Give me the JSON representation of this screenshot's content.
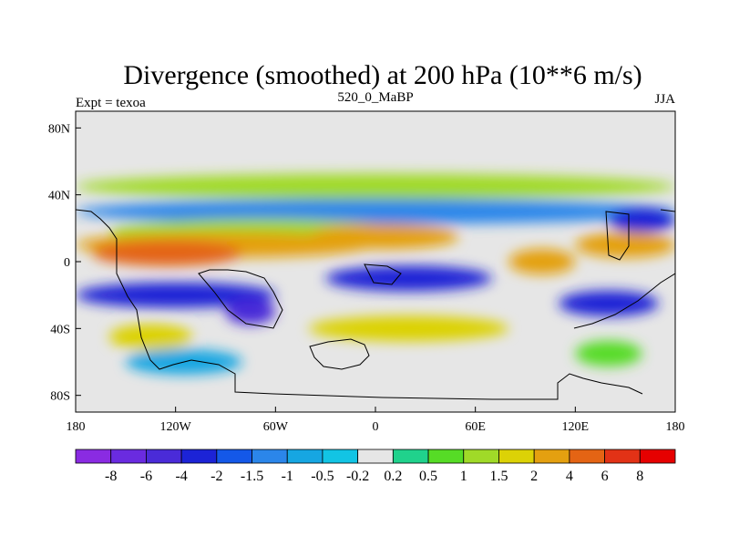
{
  "chart_data": {
    "type": "heatmap",
    "title": "Divergence (smoothed) at 200 hPa (10**6 m/s)",
    "left_label": "Expt = texoa",
    "center_label": "520_0_MaBP",
    "right_label": "JJA",
    "x_range": [
      -180,
      180
    ],
    "y_range": [
      -90,
      90
    ],
    "x_ticks": [
      {
        "value": -180,
        "label": "180"
      },
      {
        "value": -120,
        "label": "120W"
      },
      {
        "value": -60,
        "label": "60W"
      },
      {
        "value": 0,
        "label": "0"
      },
      {
        "value": 60,
        "label": "60E"
      },
      {
        "value": 120,
        "label": "120E"
      },
      {
        "value": 180,
        "label": "180"
      }
    ],
    "y_ticks": [
      {
        "value": 80,
        "label": "80N"
      },
      {
        "value": 40,
        "label": "40N"
      },
      {
        "value": 0,
        "label": "0"
      },
      {
        "value": -40,
        "label": "40S"
      },
      {
        "value": -80,
        "label": "80S"
      }
    ],
    "colorbar": {
      "levels": [
        "-8",
        "-6",
        "-4",
        "-2",
        "-1.5",
        "-1",
        "-0.5",
        "-0.2",
        "0.2",
        "0.5",
        "1",
        "1.5",
        "2",
        "4",
        "6",
        "8"
      ],
      "colors": [
        "#8a2be2",
        "#6a2be0",
        "#4a2bd8",
        "#1c23d6",
        "#1458e8",
        "#2b86ea",
        "#16a6e2",
        "#12c4e4",
        "#e6e6e6",
        "#20d28c",
        "#56dc26",
        "#a0da28",
        "#dcd206",
        "#e4a010",
        "#e46414",
        "#e23216",
        "#e60000"
      ]
    },
    "field_bands": [
      {
        "lat": 45,
        "lon_start": -180,
        "lon_end": 180,
        "value": 1.2
      },
      {
        "lat": 30,
        "lon_start": -180,
        "lon_end": 180,
        "value": -1.2
      },
      {
        "lat": 18,
        "lon_start": -160,
        "lon_end": 20,
        "value": 1.2
      },
      {
        "lat": 10,
        "lon_start": -180,
        "lon_end": 0,
        "value": 3
      },
      {
        "lat": 5,
        "lon_start": -170,
        "lon_end": -80,
        "value": 5
      },
      {
        "lat": 15,
        "lon_start": -40,
        "lon_end": 50,
        "value": 3
      },
      {
        "lat": -10,
        "lon_start": -30,
        "lon_end": 70,
        "value": -2.5
      },
      {
        "lat": -20,
        "lon_start": -180,
        "lon_end": -60,
        "value": -3
      },
      {
        "lat": -30,
        "lon_start": -90,
        "lon_end": -60,
        "value": -5
      },
      {
        "lat": -45,
        "lon_start": -160,
        "lon_end": -110,
        "value": 1.8
      },
      {
        "lat": -40,
        "lon_start": -40,
        "lon_end": 80,
        "value": 1.6
      },
      {
        "lat": -60,
        "lon_start": -150,
        "lon_end": -80,
        "value": -0.8
      },
      {
        "lat": 0,
        "lon_start": 80,
        "lon_end": 120,
        "value": 2.5
      },
      {
        "lat": 10,
        "lon_start": 120,
        "lon_end": 180,
        "value": 4
      },
      {
        "lat": 25,
        "lon_start": 140,
        "lon_end": 180,
        "value": -2.5
      },
      {
        "lat": -25,
        "lon_start": 110,
        "lon_end": 170,
        "value": -2.5
      },
      {
        "lat": -55,
        "lon_start": 120,
        "lon_end": 160,
        "value": 0.8
      }
    ]
  }
}
